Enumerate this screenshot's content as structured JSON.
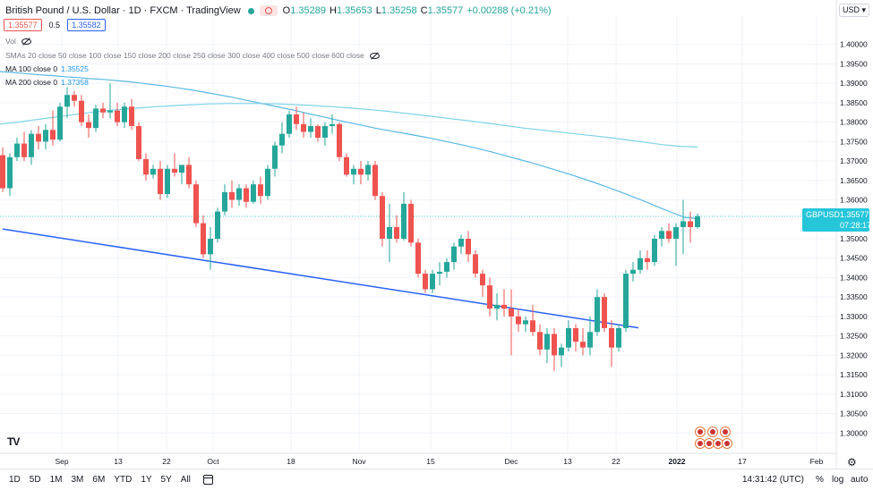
{
  "header": {
    "title": "British Pound / U.S. Dollar · 1D · FXCM · TradingView",
    "ohlc": [
      {
        "label": "O",
        "value": "1.35289"
      },
      {
        "label": "H",
        "value": "1.35653"
      },
      {
        "label": "L",
        "value": "1.35258"
      },
      {
        "label": "C",
        "value": "1.35577"
      },
      {
        "label": "",
        "value": "+0.00288 (+0.21%)"
      }
    ]
  },
  "trade": {
    "sell": "1.35577",
    "spread": "0.5",
    "buy": "1.35582"
  },
  "legend": {
    "vol": "Vol",
    "smas": "SMAs 20 close 50 close 100 close 150 close 200 close 250 close 300 close 400 close 500 close 600 close",
    "ma100": {
      "label": "MA 100 close 0",
      "value": "1.35525"
    },
    "ma200": {
      "label": "MA 200 close 0",
      "value": "1.37358"
    }
  },
  "currency": "USD",
  "last_price": {
    "symbol": "GBPUSD",
    "price": "1.35577",
    "countdown": "07:28:17"
  },
  "toolbar": {
    "timeframes": [
      "1D",
      "5D",
      "1M",
      "3M",
      "6M",
      "YTD",
      "1Y",
      "5Y",
      "All"
    ],
    "clock": "14:31:42 (UTC)",
    "percent": "%",
    "log": "log",
    "auto": "auto"
  },
  "colors": {
    "up": "#26a69a",
    "down": "#ef5350",
    "ma100": "#5ab8e6",
    "ma200": "#7dd3e8",
    "trendline": "#2962ff",
    "last": "#26c6da"
  },
  "chart_data": {
    "type": "candlestick",
    "title": "British Pound / U.S. Dollar",
    "ylim": [
      1.295,
      1.405
    ],
    "yticks": [
      "1.40000",
      "1.39500",
      "1.39000",
      "1.38500",
      "1.38000",
      "1.37500",
      "1.37000",
      "1.36500",
      "1.36000",
      "1.35500",
      "1.35000",
      "1.34500",
      "1.34000",
      "1.33500",
      "1.33000",
      "1.32500",
      "1.32000",
      "1.31500",
      "1.31000",
      "1.30500",
      "1.30000"
    ],
    "xticks": [
      "Sep",
      "13",
      "22",
      "Oct",
      "18",
      "Nov",
      "15",
      "Dec",
      "13",
      "22",
      "2022",
      "17",
      "Feb"
    ],
    "candles": [
      [
        1.3715,
        1.3735,
        1.362,
        1.363
      ],
      [
        1.363,
        1.372,
        1.361,
        1.371
      ],
      [
        1.371,
        1.376,
        1.37,
        1.3745
      ],
      [
        1.3745,
        1.3775,
        1.37,
        1.371
      ],
      [
        1.371,
        1.378,
        1.369,
        1.377
      ],
      [
        1.377,
        1.379,
        1.373,
        1.375
      ],
      [
        1.375,
        1.3795,
        1.373,
        1.378
      ],
      [
        1.378,
        1.383,
        1.374,
        1.3755
      ],
      [
        1.3755,
        1.385,
        1.375,
        1.384
      ],
      [
        1.384,
        1.389,
        1.381,
        1.387
      ],
      [
        1.387,
        1.388,
        1.384,
        1.3855
      ],
      [
        1.3855,
        1.387,
        1.379,
        1.38
      ],
      [
        1.38,
        1.382,
        1.376,
        1.3785
      ],
      [
        1.3785,
        1.3845,
        1.3775,
        1.3835
      ],
      [
        1.3835,
        1.385,
        1.381,
        1.3825
      ],
      [
        1.3825,
        1.39,
        1.381,
        1.383
      ],
      [
        1.383,
        1.385,
        1.379,
        1.38
      ],
      [
        1.38,
        1.385,
        1.3785,
        1.384
      ],
      [
        1.384,
        1.386,
        1.378,
        1.379
      ],
      [
        1.379,
        1.38,
        1.37,
        1.3705
      ],
      [
        1.3705,
        1.372,
        1.365,
        1.3665
      ],
      [
        1.3665,
        1.369,
        1.3655,
        1.368
      ],
      [
        1.368,
        1.37,
        1.36,
        1.3615
      ],
      [
        1.3615,
        1.369,
        1.3605,
        1.368
      ],
      [
        1.368,
        1.372,
        1.366,
        1.367
      ],
      [
        1.367,
        1.369,
        1.364,
        1.369
      ],
      [
        1.369,
        1.371,
        1.363,
        1.364
      ],
      [
        1.364,
        1.365,
        1.353,
        1.354
      ],
      [
        1.354,
        1.356,
        1.345,
        1.346
      ],
      [
        1.346,
        1.353,
        1.342,
        1.35
      ],
      [
        1.35,
        1.358,
        1.349,
        1.357
      ],
      [
        1.357,
        1.364,
        1.356,
        1.362
      ],
      [
        1.362,
        1.365,
        1.358,
        1.36
      ],
      [
        1.36,
        1.364,
        1.3585,
        1.363
      ],
      [
        1.363,
        1.364,
        1.358,
        1.3595
      ],
      [
        1.3595,
        1.365,
        1.359,
        1.364
      ],
      [
        1.364,
        1.366,
        1.359,
        1.361
      ],
      [
        1.361,
        1.369,
        1.36,
        1.368
      ],
      [
        1.368,
        1.375,
        1.366,
        1.374
      ],
      [
        1.374,
        1.38,
        1.372,
        1.377
      ],
      [
        1.377,
        1.383,
        1.376,
        1.382
      ],
      [
        1.382,
        1.384,
        1.378,
        1.3795
      ],
      [
        1.3795,
        1.3825,
        1.376,
        1.3775
      ],
      [
        1.3775,
        1.381,
        1.376,
        1.379
      ],
      [
        1.379,
        1.3795,
        1.375,
        1.376
      ],
      [
        1.376,
        1.38,
        1.374,
        1.379
      ],
      [
        1.379,
        1.382,
        1.377,
        1.3795
      ],
      [
        1.3795,
        1.38,
        1.37,
        1.371
      ],
      [
        1.371,
        1.372,
        1.366,
        1.3665
      ],
      [
        1.3665,
        1.369,
        1.364,
        1.368
      ],
      [
        1.368,
        1.37,
        1.364,
        1.3665
      ],
      [
        1.3665,
        1.37,
        1.365,
        1.369
      ],
      [
        1.369,
        1.37,
        1.36,
        1.361
      ],
      [
        1.361,
        1.362,
        1.348,
        1.35
      ],
      [
        1.35,
        1.359,
        1.344,
        1.353
      ],
      [
        1.353,
        1.356,
        1.349,
        1.35
      ],
      [
        1.35,
        1.362,
        1.3495,
        1.359
      ],
      [
        1.359,
        1.36,
        1.348,
        1.349
      ],
      [
        1.349,
        1.35,
        1.34,
        1.341
      ],
      [
        1.341,
        1.342,
        1.336,
        1.337
      ],
      [
        1.337,
        1.342,
        1.336,
        1.341
      ],
      [
        1.341,
        1.344,
        1.338,
        1.3415
      ],
      [
        1.3415,
        1.345,
        1.34,
        1.344
      ],
      [
        1.344,
        1.349,
        1.342,
        1.348
      ],
      [
        1.348,
        1.351,
        1.346,
        1.35
      ],
      [
        1.35,
        1.352,
        1.344,
        1.346
      ],
      [
        1.346,
        1.347,
        1.34,
        1.341
      ],
      [
        1.341,
        1.342,
        1.335,
        1.338
      ],
      [
        1.338,
        1.34,
        1.33,
        1.332
      ],
      [
        1.332,
        1.336,
        1.329,
        1.333
      ],
      [
        1.333,
        1.337,
        1.33,
        1.332
      ],
      [
        1.332,
        1.337,
        1.32,
        1.33
      ],
      [
        1.33,
        1.332,
        1.326,
        1.328
      ],
      [
        1.328,
        1.33,
        1.326,
        1.329
      ],
      [
        1.329,
        1.333,
        1.325,
        1.326
      ],
      [
        1.326,
        1.328,
        1.32,
        1.3215
      ],
      [
        1.3215,
        1.327,
        1.318,
        1.3255
      ],
      [
        1.3255,
        1.327,
        1.316,
        1.32
      ],
      [
        1.32,
        1.323,
        1.317,
        1.322
      ],
      [
        1.322,
        1.329,
        1.321,
        1.327
      ],
      [
        1.327,
        1.328,
        1.321,
        1.3235
      ],
      [
        1.3235,
        1.327,
        1.32,
        1.322
      ],
      [
        1.322,
        1.33,
        1.32,
        1.326
      ],
      [
        1.326,
        1.337,
        1.325,
        1.335
      ],
      [
        1.335,
        1.336,
        1.326,
        1.327
      ],
      [
        1.327,
        1.329,
        1.317,
        1.322
      ],
      [
        1.322,
        1.328,
        1.321,
        1.327
      ],
      [
        1.327,
        1.342,
        1.326,
        1.341
      ],
      [
        1.341,
        1.344,
        1.339,
        1.342
      ],
      [
        1.342,
        1.347,
        1.341,
        1.345
      ],
      [
        1.345,
        1.347,
        1.342,
        1.344
      ],
      [
        1.344,
        1.351,
        1.343,
        1.35
      ],
      [
        1.35,
        1.353,
        1.348,
        1.352
      ],
      [
        1.352,
        1.354,
        1.349,
        1.35
      ],
      [
        1.35,
        1.354,
        1.343,
        1.353
      ],
      [
        1.353,
        1.36,
        1.346,
        1.3545
      ],
      [
        1.3545,
        1.357,
        1.349,
        1.353
      ],
      [
        1.353,
        1.3565,
        1.3526,
        1.3558
      ]
    ],
    "ma100": [
      1.393,
      1.3928,
      1.3925,
      1.3922,
      1.392,
      1.3917,
      1.3915,
      1.3912,
      1.391,
      1.3907,
      1.3904,
      1.39,
      1.3896,
      1.3892,
      1.3887,
      1.3882,
      1.3876,
      1.387,
      1.3864,
      1.3857,
      1.385,
      1.3843,
      1.3836,
      1.3829,
      1.3821,
      1.3814,
      1.3806,
      1.3799,
      1.3792,
      1.3785,
      1.3779,
      1.3773,
      1.3767,
      1.3761,
      1.3754,
      1.3747,
      1.374,
      1.3732,
      1.3724,
      1.3715,
      1.3706,
      1.3697,
      1.3687,
      1.3677,
      1.3667,
      1.3656,
      1.3645,
      1.3633,
      1.3621,
      1.3608,
      1.3595,
      1.3581,
      1.3568,
      1.3555,
      1.3552
    ],
    "ma200": [
      1.3795,
      1.38,
      1.3806,
      1.3812,
      1.3818,
      1.3824,
      1.3829,
      1.3833,
      1.3837,
      1.384,
      1.3843,
      1.3845,
      1.3847,
      1.3848,
      1.3848,
      1.3848,
      1.3847,
      1.3845,
      1.3843,
      1.384,
      1.3837,
      1.3833,
      1.3829,
      1.3824,
      1.3819,
      1.3814,
      1.3808,
      1.3803,
      1.3797,
      1.3791,
      1.3785,
      1.378,
      1.3775,
      1.377,
      1.3765,
      1.376,
      1.3754,
      1.3748,
      1.3742,
      1.3738,
      1.3736
    ],
    "trendline": [
      {
        "x": 0,
        "y": 1.3525
      },
      {
        "x": 90,
        "y": 1.328
      }
    ],
    "last": 1.35577
  }
}
